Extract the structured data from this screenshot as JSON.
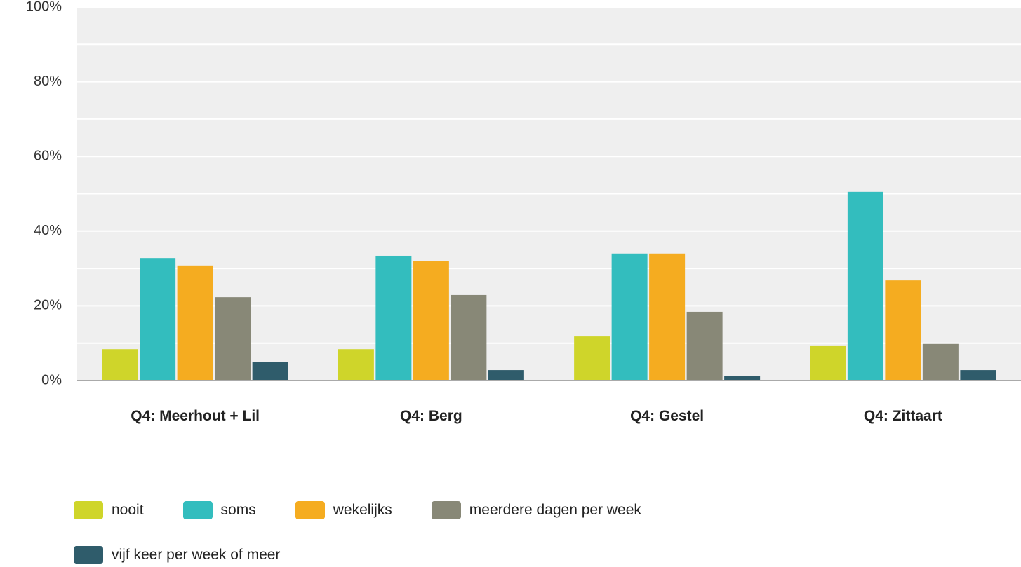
{
  "chart_data": {
    "type": "bar",
    "categories": [
      "Q4: Meerhout + Lil",
      "Q4: Berg",
      "Q4: Gestel",
      "Q4: Zittaart"
    ],
    "series": [
      {
        "name": "nooit",
        "color": "#cfd52a",
        "values": [
          8.4,
          8.4,
          11.8,
          9.4
        ]
      },
      {
        "name": "soms",
        "color": "#33bdbe",
        "values": [
          32.8,
          33.4,
          34.0,
          50.5
        ]
      },
      {
        "name": "wekelijks",
        "color": "#f5ac20",
        "values": [
          30.8,
          31.9,
          34.0,
          26.8
        ]
      },
      {
        "name": "meerdere dagen per week",
        "color": "#888877",
        "values": [
          22.3,
          22.9,
          18.4,
          9.8
        ]
      },
      {
        "name": "vijf keer per week of meer",
        "color": "#2f5c6b",
        "values": [
          4.9,
          2.8,
          1.3,
          2.8
        ]
      }
    ],
    "ylim": [
      0,
      100
    ],
    "yticks": [
      {
        "value": 0,
        "label": "0%"
      },
      {
        "value": 20,
        "label": "20%"
      },
      {
        "value": 40,
        "label": "40%"
      },
      {
        "value": 60,
        "label": "60%"
      },
      {
        "value": 80,
        "label": "80%"
      },
      {
        "value": 100,
        "label": "100%"
      }
    ],
    "minor_yticks": [
      10,
      30,
      50,
      70,
      90
    ],
    "grid": true,
    "legend": "bottom"
  }
}
